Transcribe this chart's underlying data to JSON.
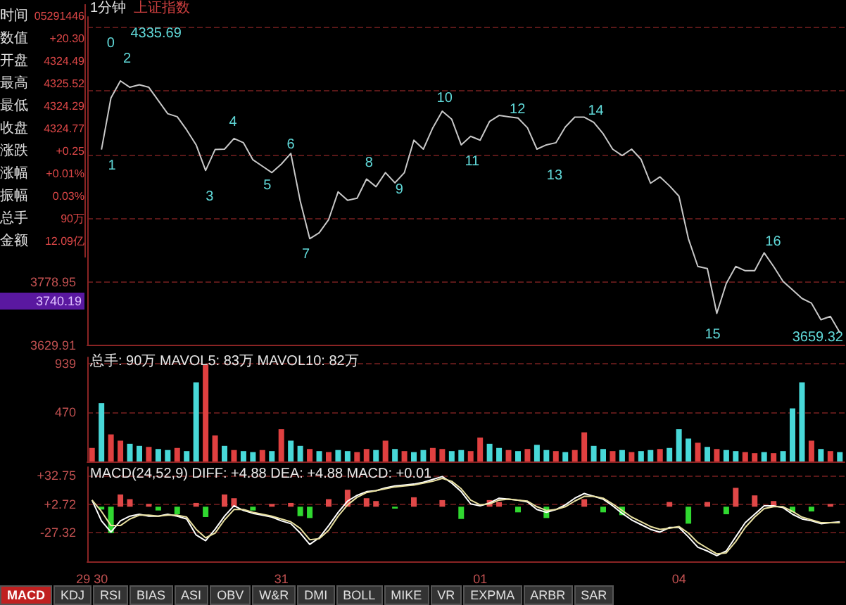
{
  "chart_data": [
    {
      "type": "other",
      "annotations": [
        "时间",
        "05291446",
        "数值",
        "+20.30",
        "开盘",
        "4324.49",
        "最高",
        "4325.52",
        "最低",
        "4324.29",
        "收盘",
        "4324.77",
        "涨跌",
        "+0.25",
        "涨幅",
        "+0.01%",
        "振幅",
        "0.03%",
        "总手",
        "90万",
        "金额",
        "12.09亿"
      ]
    },
    {
      "type": "line",
      "title": "1分钟",
      "subtitle": "上证指数",
      "categories": [
        null,
        null,
        null,
        null,
        null,
        null,
        null,
        null,
        null,
        null,
        null,
        null,
        null,
        null,
        null,
        null,
        null,
        null,
        null,
        null,
        null,
        null,
        null,
        null,
        null,
        null,
        null,
        null,
        null,
        null,
        null,
        null,
        null,
        null,
        null,
        null,
        null,
        null,
        null,
        null,
        null,
        null,
        null,
        null,
        null,
        null,
        null,
        null,
        null,
        null,
        null,
        null,
        null,
        null,
        null,
        null,
        null,
        null,
        null,
        null,
        null,
        null,
        null,
        null,
        null,
        null,
        null,
        null,
        null,
        null,
        null,
        null,
        null,
        null,
        null,
        null,
        null,
        null,
        null,
        null
      ],
      "ylim": [
        3629.91,
        4400
      ],
      "yticks": [
        3629.91,
        3778.95,
        {
          "value": 3927.99,
          "label": null
        },
        {
          "value": 4077.03,
          "label": null
        },
        {
          "value": 4226.07,
          "label": null
        },
        {
          "value": 4375.11,
          "label": null
        }
      ],
      "tick_labels": "y",
      "grid": "y",
      "series": [
        {
          "color": "#c8c8c8",
          "values": [
            null,
            4089,
            4210,
            4250,
            4235,
            4241,
            4235,
            4204,
            4173,
            4166,
            4135,
            4100,
            4040,
            4089,
            4090,
            4115,
            4105,
            4065,
            4050,
            4035,
            4055,
            4080,
            3968,
            3880,
            3894,
            3925,
            3990,
            3970,
            3975,
            4020,
            4002,
            4035,
            4011,
            4035,
            4111,
            4090,
            4140,
            4179,
            4160,
            4100,
            4120,
            4111,
            4155,
            4169,
            4166,
            4163,
            4140,
            4090,
            4100,
            4105,
            4142,
            4165,
            4165,
            4153,
            4126,
            4090,
            4075,
            4090,
            4066,
            4010,
            4025,
            4004,
            3980,
            3880,
            3815,
            3810,
            3705,
            3775,
            3815,
            3805,
            3805,
            3847,
            3815,
            3780,
            3760,
            3740,
            3729,
            3690,
            3698,
            3660
          ]
        }
      ],
      "annotations": [
        "0",
        "1",
        "2",
        "3",
        "4",
        "5",
        "6",
        "7",
        "8",
        "9",
        "10",
        "11",
        "12",
        "13",
        "14",
        "15",
        "16",
        "4335.69",
        "3659.32",
        "3740.19"
      ]
    },
    {
      "type": "bar",
      "title": "总手: 90万 MAVOL5: 83万 MAVOL10: 82万",
      "categories": [
        null,
        null,
        null,
        null,
        null,
        null,
        null,
        null,
        null,
        null,
        null,
        null,
        null,
        null,
        null,
        null,
        null,
        null,
        null,
        null,
        null,
        null,
        null,
        null,
        null,
        null,
        null,
        null,
        null,
        null,
        null,
        null,
        null,
        null,
        null,
        null,
        null,
        null,
        null,
        null,
        null,
        null,
        null,
        null,
        null,
        null,
        null,
        null,
        null,
        null,
        null,
        null,
        null,
        null,
        null,
        null,
        null,
        null,
        null,
        null,
        null,
        null,
        null,
        null,
        null,
        null,
        null,
        null,
        null,
        null,
        null,
        null,
        null,
        null,
        null,
        null,
        null,
        null,
        null,
        null
      ],
      "ylim": [
        0,
        1000
      ],
      "yticks": [
        {
          "value": 0,
          "label": null
        },
        470,
        939
      ],
      "tick_labels": "y",
      "grid": "y",
      "series": [
        {
          "values": [
            130,
            560,
            260,
            200,
            170,
            150,
            140,
            120,
            110,
            130,
            100,
            760,
            930,
            250,
            150,
            110,
            100,
            90,
            110,
            100,
            310,
            200,
            150,
            120,
            100,
            90,
            110,
            100,
            90,
            120,
            110,
            200,
            120,
            100,
            90,
            110,
            130,
            120,
            100,
            110,
            100,
            230,
            170,
            130,
            110,
            100,
            120,
            160,
            110,
            100,
            90,
            110,
            280,
            150,
            120,
            100,
            110,
            90,
            100,
            110,
            120,
            130,
            310,
            220,
            180,
            140,
            120,
            110,
            100,
            90,
            80,
            90,
            80,
            100,
            510,
            760,
            200,
            120,
            100,
            90
          ],
          "colors": [
            "#e04040",
            "#48d8d8",
            "#e04040",
            "#e04040",
            "#48d8d8",
            "#48d8d8",
            "#e04040",
            "#48d8d8",
            "#48d8d8",
            "#e04040",
            "#48d8d8",
            "#48d8d8",
            "#e04040",
            "#e04040",
            "#48d8d8",
            "#e04040",
            "#48d8d8",
            "#48d8d8",
            "#e04040",
            "#48d8d8",
            "#e04040",
            "#48d8d8",
            "#48d8d8",
            "#e04040",
            "#48d8d8",
            "#e04040",
            "#48d8d8",
            "#48d8d8",
            "#e04040",
            "#e04040",
            "#48d8d8",
            "#e04040",
            "#48d8d8",
            "#e04040",
            "#48d8d8",
            "#48d8d8",
            "#e04040",
            "#e04040",
            "#48d8d8",
            "#48d8d8",
            "#e04040",
            "#e04040",
            "#48d8d8",
            "#48d8d8",
            "#e04040",
            "#48d8d8",
            "#e04040",
            "#48d8d8",
            "#48d8d8",
            "#e04040",
            "#48d8d8",
            "#e04040",
            "#e04040",
            "#48d8d8",
            "#48d8d8",
            "#e04040",
            "#48d8d8",
            "#e04040",
            "#48d8d8",
            "#48d8d8",
            "#e04040",
            "#48d8d8",
            "#48d8d8",
            "#48d8d8",
            "#e04040",
            "#48d8d8",
            "#e04040",
            "#48d8d8",
            "#48d8d8",
            "#e04040",
            "#e04040",
            "#48d8d8",
            "#e04040",
            "#48d8d8",
            "#48d8d8",
            "#48d8d8",
            "#e04040",
            "#48d8d8",
            "#e04040",
            "#48d8d8"
          ]
        }
      ]
    },
    {
      "type": "bar",
      "title": "MACD(24,52,9) DIFF: +4.88 DEA: +4.88 MACD: +0.01",
      "categories": [
        "29 30",
        null,
        null,
        null,
        null,
        null,
        null,
        null,
        null,
        null,
        null,
        null,
        null,
        null,
        null,
        null,
        null,
        null,
        null,
        null,
        "31",
        null,
        null,
        null,
        null,
        null,
        null,
        null,
        null,
        null,
        null,
        null,
        null,
        null,
        null,
        null,
        null,
        null,
        null,
        null,
        null,
        "01",
        null,
        null,
        null,
        null,
        null,
        null,
        null,
        null,
        null,
        null,
        null,
        null,
        null,
        null,
        null,
        null,
        null,
        null,
        null,
        null,
        "04",
        null,
        null,
        null,
        null,
        null,
        null,
        null,
        null,
        null,
        null,
        null,
        null,
        null,
        null,
        null,
        null,
        null
      ],
      "ylim": [
        -58,
        42
      ],
      "yticks": [
        {
          "value": 32.75,
          "label": "+32.75"
        },
        {
          "value": 2.72,
          "label": "+2.72"
        },
        -27.32
      ],
      "grid": "y",
      "series": [
        {
          "color": "#e04848",
          "values": [
            null,
            null,
            null,
            13,
            8,
            null,
            3,
            null,
            null,
            null,
            null,
            4,
            null,
            null,
            13,
            9,
            null,
            null,
            null,
            3,
            null,
            4,
            null,
            null,
            null,
            8,
            null,
            18,
            null,
            9,
            6,
            null,
            null,
            null,
            10,
            null,
            null,
            7,
            null,
            null,
            null,
            null,
            7,
            5,
            null,
            null,
            null,
            null,
            null,
            null,
            null,
            null,
            8,
            null,
            null,
            null,
            null,
            null,
            null,
            null,
            null,
            5,
            null,
            null,
            null,
            5,
            null,
            null,
            20,
            null,
            12,
            null,
            6,
            null,
            null,
            null,
            null,
            null,
            3,
            null
          ]
        },
        {
          "color": "#30d830",
          "values": [
            null,
            -3,
            -28,
            null,
            null,
            null,
            null,
            -4,
            null,
            -8,
            null,
            null,
            -11,
            null,
            null,
            null,
            null,
            -4,
            null,
            null,
            null,
            null,
            -10,
            -12,
            null,
            null,
            null,
            null,
            null,
            null,
            null,
            null,
            -2,
            null,
            null,
            null,
            null,
            null,
            null,
            -13,
            null,
            null,
            null,
            null,
            null,
            -6,
            null,
            null,
            -12,
            null,
            null,
            null,
            null,
            null,
            -6,
            null,
            -9,
            null,
            null,
            null,
            null,
            null,
            null,
            -18,
            null,
            null,
            null,
            -8,
            null,
            null,
            null,
            null,
            null,
            null,
            -6,
            null,
            -5,
            null,
            null,
            null
          ]
        },
        {
          "type": "line",
          "color": "#ffffff",
          "values": [
            7,
            -15,
            -27,
            -15,
            -10,
            -8,
            -10,
            -10,
            -8,
            -10,
            -13,
            -30,
            -36,
            -24,
            -10,
            1,
            -4,
            -7,
            -9,
            -11,
            -15,
            -18,
            -28,
            -40,
            -33,
            -20,
            -6,
            6,
            12,
            16,
            17,
            20,
            22,
            23,
            24,
            26,
            29,
            32,
            25,
            16,
            3,
            1,
            4,
            9,
            8,
            7,
            5,
            -3,
            -6,
            -3,
            2,
            9,
            14,
            11,
            8,
            1,
            -7,
            -14,
            -19,
            -24,
            -27,
            -22,
            -22,
            -32,
            -43,
            -47,
            -52,
            -47,
            -32,
            -17,
            -8,
            1,
            1,
            -1,
            -8,
            -13,
            -15,
            -18,
            -17,
            -16
          ]
        },
        {
          "type": "line",
          "color": "#e8e0a0",
          "values": [
            7,
            -5,
            -20,
            -20,
            -13,
            -9,
            -9,
            -10,
            -9,
            -9,
            -11,
            -24,
            -33,
            -28,
            -14,
            -3,
            -3,
            -6,
            -8,
            -10,
            -13,
            -16,
            -23,
            -35,
            -34,
            -25,
            -10,
            2,
            10,
            15,
            17,
            19,
            21,
            22,
            23,
            25,
            27,
            30,
            27,
            19,
            7,
            2,
            3,
            7,
            8,
            7,
            6,
            0,
            -4,
            -3,
            0,
            6,
            11,
            11,
            9,
            3,
            -4,
            -11,
            -16,
            -21,
            -24,
            -23,
            -21,
            -28,
            -38,
            -44,
            -50,
            -49,
            -37,
            -22,
            -11,
            -2,
            0,
            0,
            -5,
            -11,
            -14,
            -17,
            -17,
            -17
          ]
        }
      ]
    },
    {
      "type": "other",
      "annotations": [
        "MACD",
        "KDJ",
        "RSI",
        "BIAS",
        "ASI",
        "OBV",
        "W&R",
        "DMI",
        "BOLL",
        "MIKE",
        "VR",
        "EXPMA",
        "ARBR",
        "SAR"
      ]
    }
  ]
}
